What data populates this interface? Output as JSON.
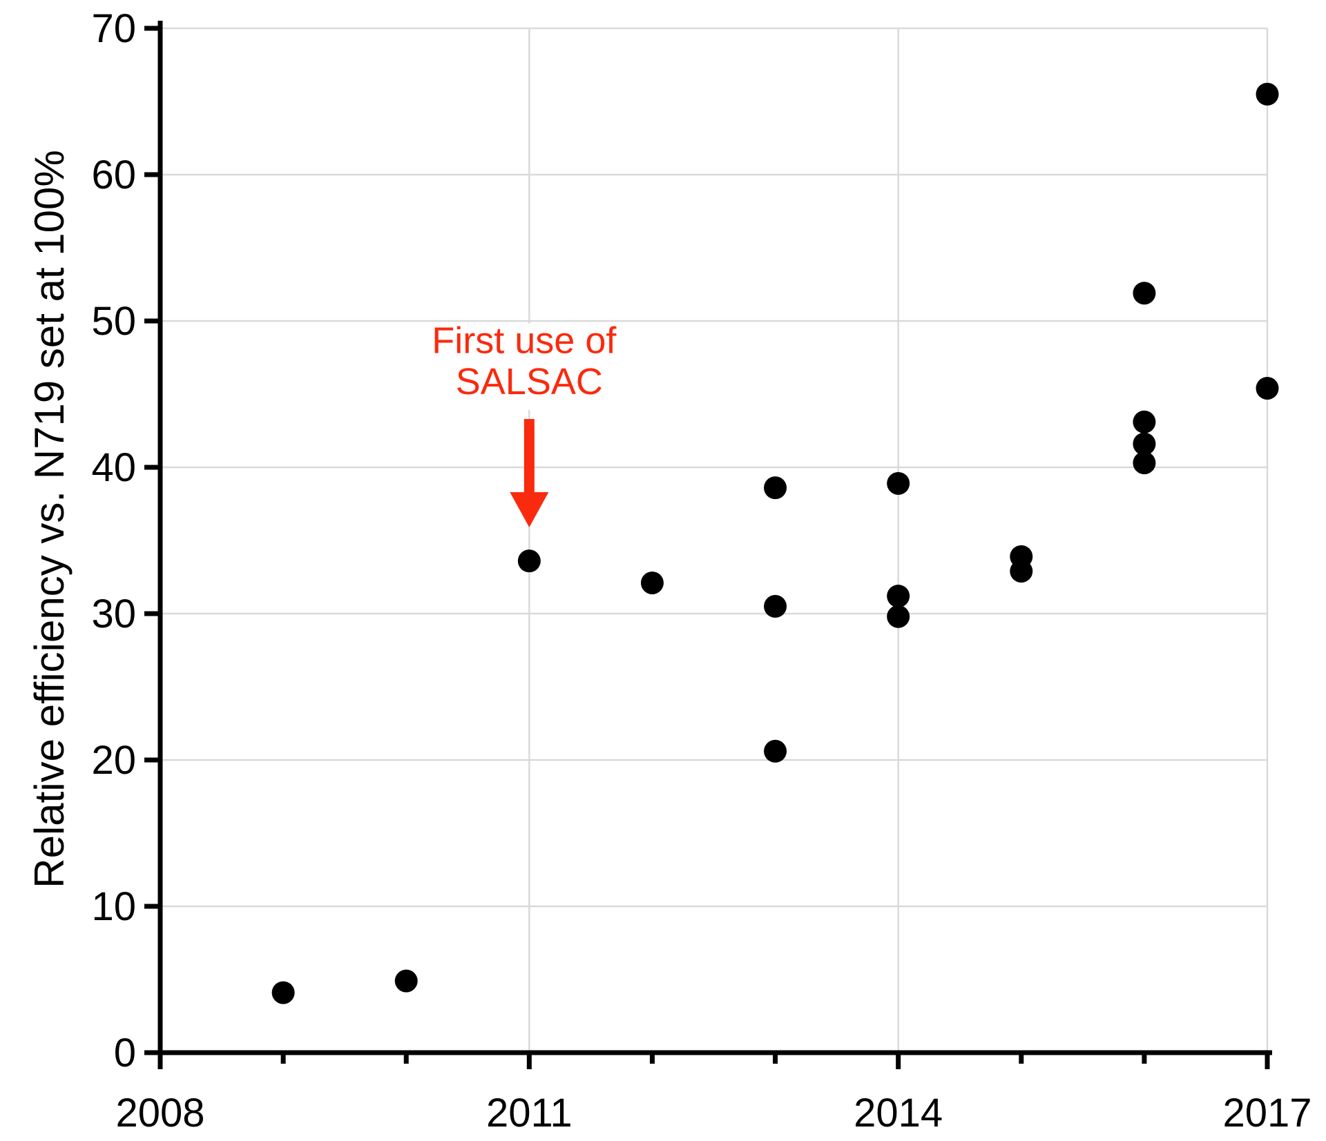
{
  "chart_data": {
    "type": "scatter",
    "title": "",
    "xlabel": "",
    "ylabel": "Relative efficiency vs. N719 set at 100%",
    "xlim": [
      2008,
      2017
    ],
    "ylim": [
      0,
      70
    ],
    "grid": true,
    "legend": "none",
    "x_major_ticks": [
      2008,
      2011,
      2014,
      2017
    ],
    "x_tick_labels": [
      "2008",
      "2011",
      "2014",
      "2017"
    ],
    "x_minor_ticks": [
      2009,
      2010,
      2012,
      2013,
      2015,
      2016
    ],
    "y_ticks": [
      0,
      10,
      20,
      30,
      40,
      50,
      60,
      70
    ],
    "y_tick_labels": [
      "0",
      "10",
      "20",
      "30",
      "40",
      "50",
      "60",
      "70"
    ],
    "grid_horizontal_values": [
      10,
      20,
      30,
      40,
      50,
      60,
      70
    ],
    "grid_vertical_years": [
      2011,
      2014,
      2017
    ],
    "points": [
      {
        "x": 2009,
        "y": 4.1
      },
      {
        "x": 2010,
        "y": 4.9
      },
      {
        "x": 2011,
        "y": 33.6
      },
      {
        "x": 2012,
        "y": 32.1
      },
      {
        "x": 2013,
        "y": 38.6
      },
      {
        "x": 2013,
        "y": 30.5
      },
      {
        "x": 2013,
        "y": 20.6
      },
      {
        "x": 2014,
        "y": 38.9
      },
      {
        "x": 2014,
        "y": 31.2
      },
      {
        "x": 2014,
        "y": 29.8
      },
      {
        "x": 2015,
        "y": 33.9
      },
      {
        "x": 2015,
        "y": 32.9
      },
      {
        "x": 2016,
        "y": 51.9
      },
      {
        "x": 2016,
        "y": 43.1
      },
      {
        "x": 2016,
        "y": 41.6
      },
      {
        "x": 2016,
        "y": 40.3
      },
      {
        "x": 2017,
        "y": 65.5
      },
      {
        "x": 2017,
        "y": 45.4
      }
    ],
    "annotation": {
      "line1": "First use of",
      "line2": "SALSAC",
      "text_center_year": 2011,
      "line1_baseline_value": 47.8,
      "line2_baseline_value": 45.0,
      "arrow_top_value": 43.3,
      "arrow_head_top_value": 38.3,
      "arrow_tip_value": 35.9,
      "arrow_tip_year": 2011
    },
    "colors": {
      "point": "#000000",
      "axis": "#000000",
      "grid": "#d9d9d9",
      "annotation": "#fa2a0e",
      "background": "#ffffff"
    }
  }
}
